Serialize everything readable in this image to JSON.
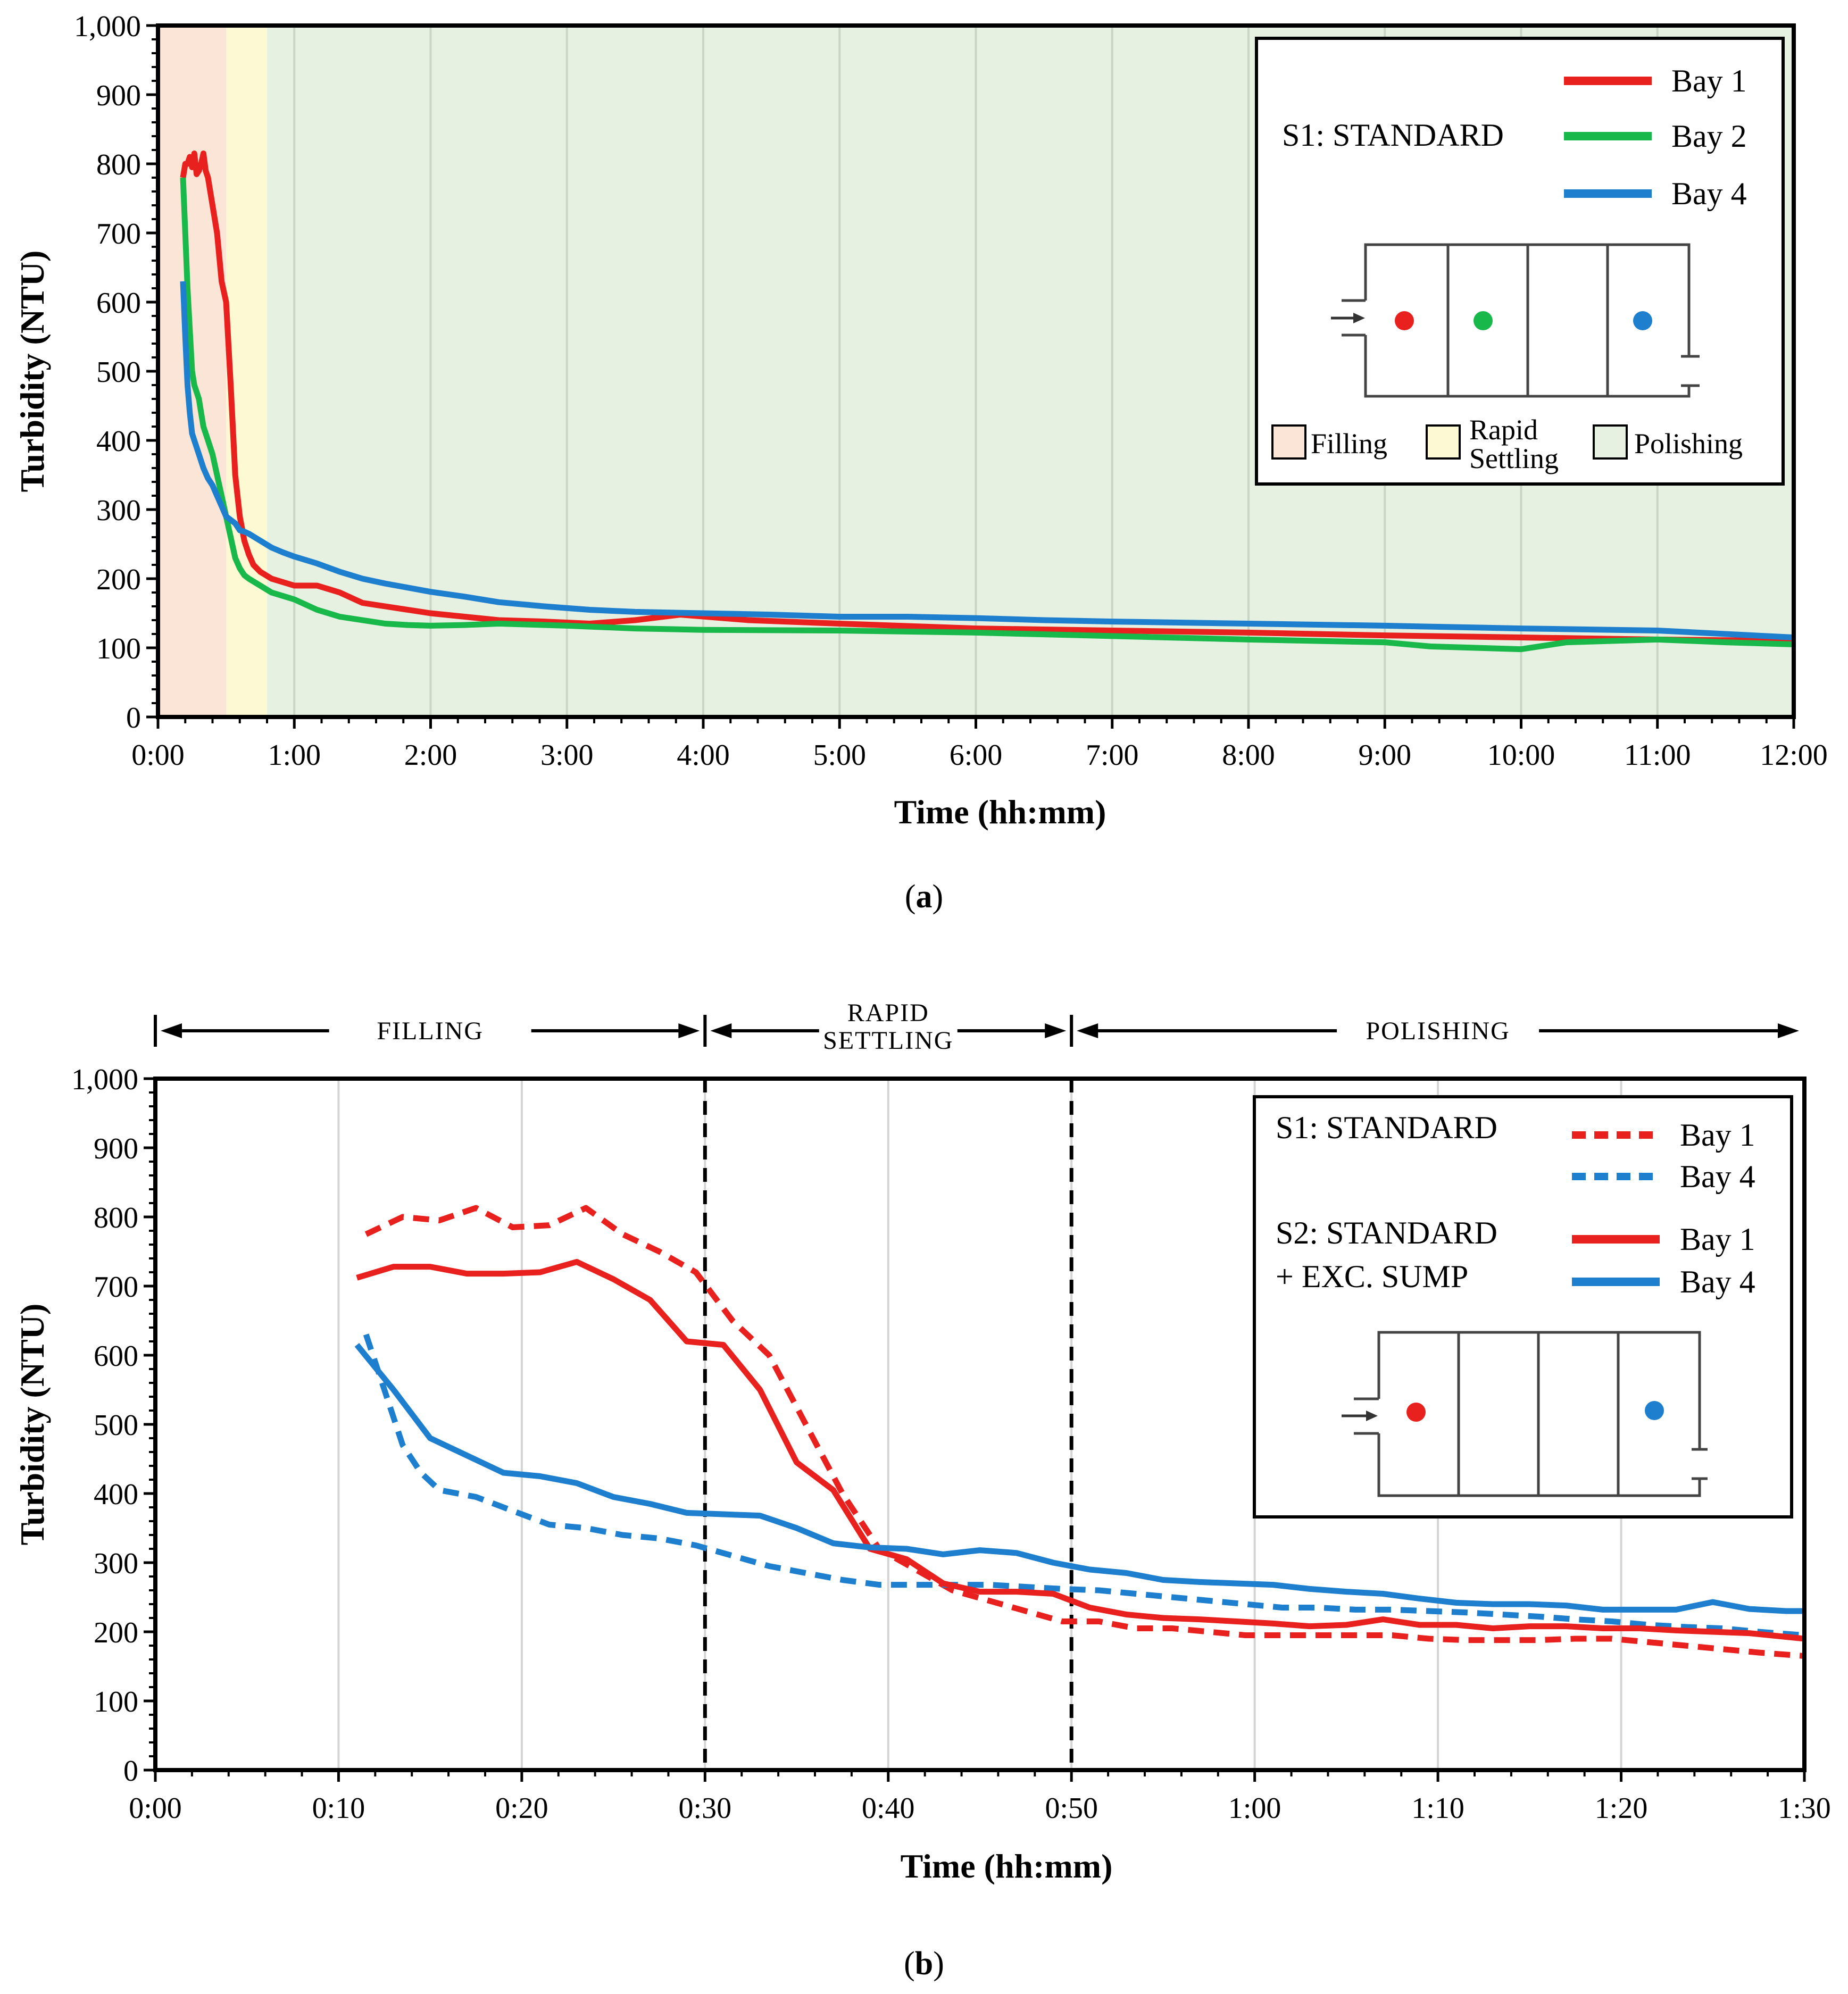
{
  "colors": {
    "red": "#e8201e",
    "green": "#19b84a",
    "blue": "#1e7fcf",
    "filling_bg": "#fbe5d6",
    "settling_bg": "#fdf9d2",
    "polishing_bg": "#e7f1e1",
    "grid": "#cfd8cf"
  },
  "chart_data": [
    {
      "type": "line",
      "panel_label": "(a)",
      "panel_letter": "a",
      "xlabel": "Time (hh:mm)",
      "ylabel": "Turbidity  (NTU)",
      "xlim": [
        0,
        720
      ],
      "ylim": [
        0,
        1000
      ],
      "x_ticks": [
        0,
        60,
        120,
        180,
        240,
        300,
        360,
        420,
        480,
        540,
        600,
        660,
        720
      ],
      "x_tick_labels": [
        "0:00",
        "1:00",
        "2:00",
        "3:00",
        "4:00",
        "5:00",
        "6:00",
        "7:00",
        "8:00",
        "9:00",
        "10:00",
        "11:00",
        "12:00"
      ],
      "y_ticks": [
        0,
        100,
        200,
        300,
        400,
        500,
        600,
        700,
        800,
        900,
        1000
      ],
      "y_tick_labels": [
        "0",
        "100",
        "200",
        "300",
        "400",
        "500",
        "600",
        "700",
        "800",
        "900",
        "1,000"
      ],
      "phases": [
        {
          "name": "Filling",
          "start": 0,
          "end": 30,
          "color": "#fbe5d6"
        },
        {
          "name": "Rapid Settling",
          "start": 30,
          "end": 48,
          "color": "#fdf9d2"
        },
        {
          "name": "Polishing",
          "start": 48,
          "end": 720,
          "color": "#e7f1e1"
        }
      ],
      "legend_title": "S1: STANDARD",
      "phase_legend": [
        "Filling",
        "Rapid",
        "Settling",
        "Polishing"
      ],
      "series": [
        {
          "name": "Bay 1",
          "color": "#e8201e",
          "style": "solid",
          "x": [
            11,
            12,
            13,
            14,
            15,
            16,
            17,
            18,
            19,
            20,
            21,
            22,
            24,
            26,
            28,
            30,
            32,
            34,
            36,
            38,
            40,
            42,
            45,
            50,
            55,
            60,
            70,
            80,
            90,
            100,
            110,
            120,
            135,
            150,
            170,
            190,
            210,
            230,
            260,
            300,
            360,
            420,
            480,
            540,
            600,
            660,
            720
          ],
          "y": [
            780,
            800,
            800,
            810,
            795,
            815,
            785,
            790,
            800,
            815,
            790,
            780,
            740,
            700,
            630,
            600,
            480,
            350,
            290,
            255,
            235,
            220,
            210,
            200,
            195,
            190,
            190,
            180,
            165,
            160,
            155,
            150,
            145,
            140,
            138,
            135,
            140,
            148,
            140,
            135,
            128,
            125,
            122,
            118,
            115,
            112,
            110
          ]
        },
        {
          "name": "Bay 2",
          "color": "#19b84a",
          "style": "solid",
          "x": [
            11,
            12,
            13,
            14,
            15,
            16,
            17,
            18,
            19,
            20,
            21,
            22,
            24,
            26,
            28,
            30,
            32,
            34,
            36,
            38,
            40,
            45,
            50,
            55,
            60,
            70,
            80,
            90,
            100,
            110,
            120,
            135,
            150,
            180,
            210,
            240,
            300,
            360,
            420,
            480,
            540,
            560,
            580,
            600,
            620,
            640,
            660,
            690,
            720
          ],
          "y": [
            780,
            700,
            620,
            560,
            500,
            480,
            470,
            460,
            440,
            420,
            410,
            400,
            380,
            350,
            320,
            290,
            260,
            230,
            215,
            205,
            200,
            190,
            180,
            175,
            170,
            155,
            145,
            140,
            135,
            133,
            132,
            133,
            135,
            132,
            128,
            126,
            125,
            122,
            117,
            112,
            108,
            102,
            100,
            98,
            108,
            110,
            112,
            108,
            105
          ]
        },
        {
          "name": "Bay 4",
          "color": "#1e7fcf",
          "style": "solid",
          "x": [
            11,
            12,
            13,
            14,
            15,
            16,
            17,
            18,
            20,
            22,
            24,
            26,
            28,
            30,
            32,
            34,
            36,
            38,
            40,
            45,
            50,
            55,
            60,
            70,
            80,
            90,
            100,
            110,
            120,
            135,
            150,
            170,
            190,
            210,
            240,
            270,
            300,
            330,
            360,
            390,
            420,
            480,
            540,
            600,
            660,
            690,
            720
          ],
          "y": [
            630,
            550,
            480,
            440,
            410,
            400,
            390,
            380,
            360,
            345,
            335,
            320,
            305,
            290,
            285,
            280,
            270,
            268,
            265,
            255,
            245,
            238,
            232,
            222,
            210,
            200,
            193,
            187,
            181,
            174,
            166,
            160,
            155,
            152,
            150,
            148,
            145,
            145,
            143,
            140,
            138,
            135,
            132,
            128,
            125,
            120,
            115
          ]
        }
      ]
    },
    {
      "type": "line",
      "panel_label": "(b)",
      "panel_letter": "b",
      "xlabel": "Time (hh:mm)",
      "ylabel": "Turbidity  (NTU)",
      "xlim": [
        0,
        90
      ],
      "ylim": [
        0,
        1000
      ],
      "x_ticks": [
        0,
        10,
        20,
        30,
        40,
        50,
        60,
        70,
        80,
        90
      ],
      "x_tick_labels": [
        "0:00",
        "0:10",
        "0:20",
        "0:30",
        "0:40",
        "0:50",
        "1:00",
        "1:10",
        "1:20",
        "1:30"
      ],
      "y_ticks": [
        0,
        100,
        200,
        300,
        400,
        500,
        600,
        700,
        800,
        900,
        1000
      ],
      "y_tick_labels": [
        "0",
        "100",
        "200",
        "300",
        "400",
        "500",
        "600",
        "700",
        "800",
        "900",
        "1,000"
      ],
      "phase_markers": [
        30,
        50
      ],
      "phase_annotations": [
        {
          "start": 0,
          "end": 30,
          "label": [
            "FILLING"
          ]
        },
        {
          "start": 30,
          "end": 50,
          "label": [
            "RAPID",
            "SETTLING"
          ]
        },
        {
          "start": 50,
          "end": 90,
          "label": [
            "POLISHING"
          ]
        }
      ],
      "legend_groups": [
        {
          "title": [
            "S1: STANDARD"
          ],
          "entries": [
            "Bay 1",
            "Bay 4"
          ],
          "style": "dashed"
        },
        {
          "title": [
            "S2: STANDARD",
            "+ EXC. SUMP"
          ],
          "entries": [
            "Bay 1",
            "Bay 4"
          ],
          "style": "solid"
        }
      ],
      "series": [
        {
          "name": "S1 Bay 1",
          "color": "#e8201e",
          "style": "dashed",
          "x": [
            11.5,
            13.5,
            15.5,
            17.5,
            19.5,
            21.5,
            23.5,
            25.5,
            27.5,
            29.5,
            31.5,
            33.5,
            35.5,
            37.5,
            39.5,
            41.5,
            43.5,
            45.5,
            47.5,
            49.5,
            51.5,
            53.5,
            55.5,
            57.5,
            59.5,
            61.5,
            63.5,
            65.5,
            67.5,
            69.5,
            71.5,
            73.5,
            75.5,
            77.5,
            79.5,
            81.5,
            83.5,
            85.5,
            87.5,
            90
          ],
          "y": [
            775,
            800,
            795,
            813,
            785,
            788,
            813,
            775,
            750,
            720,
            650,
            600,
            500,
            400,
            320,
            290,
            260,
            245,
            230,
            215,
            215,
            205,
            205,
            200,
            195,
            195,
            195,
            195,
            195,
            190,
            188,
            188,
            188,
            190,
            190,
            185,
            180,
            175,
            170,
            165
          ]
        },
        {
          "name": "S1 Bay 4",
          "color": "#1e7fcf",
          "style": "dashed",
          "x": [
            11.5,
            12.5,
            13.5,
            14.5,
            15.5,
            17.5,
            19.5,
            21.5,
            23.5,
            25.5,
            27.5,
            29.5,
            31.5,
            33.5,
            35.5,
            37.5,
            39.5,
            41.5,
            43.5,
            45.5,
            47.5,
            49.5,
            51.5,
            53.5,
            55.5,
            57.5,
            59.5,
            61.5,
            63.5,
            65.5,
            67.5,
            69.5,
            71.5,
            73.5,
            75.5,
            77.5,
            79.5,
            81.5,
            83.5,
            85.5,
            87.5,
            90
          ],
          "y": [
            630,
            550,
            470,
            430,
            405,
            395,
            375,
            355,
            350,
            340,
            335,
            325,
            310,
            295,
            285,
            275,
            268,
            268,
            268,
            268,
            265,
            262,
            260,
            255,
            250,
            245,
            240,
            235,
            235,
            232,
            232,
            230,
            228,
            225,
            222,
            218,
            215,
            210,
            207,
            205,
            200,
            195
          ]
        },
        {
          "name": "S2 Bay 1",
          "color": "#e8201e",
          "style": "solid",
          "x": [
            11,
            13,
            15,
            17,
            19,
            21,
            23,
            25,
            27,
            29,
            31,
            33,
            35,
            37,
            39,
            41,
            43,
            45,
            47,
            49,
            51,
            53,
            55,
            57,
            59,
            61,
            63,
            65,
            67,
            69,
            71,
            73,
            75,
            77,
            79,
            81,
            83,
            85,
            87,
            90
          ],
          "y": [
            712,
            728,
            728,
            718,
            718,
            720,
            735,
            710,
            680,
            620,
            615,
            550,
            445,
            405,
            320,
            305,
            270,
            258,
            258,
            255,
            235,
            225,
            220,
            218,
            215,
            212,
            208,
            210,
            218,
            210,
            210,
            205,
            208,
            208,
            205,
            205,
            202,
            200,
            198,
            190
          ]
        },
        {
          "name": "S2 Bay 4",
          "color": "#1e7fcf",
          "style": "solid",
          "x": [
            11,
            13,
            15,
            17,
            19,
            21,
            23,
            25,
            27,
            29,
            31,
            33,
            35,
            37,
            39,
            41,
            43,
            45,
            47,
            49,
            51,
            53,
            55,
            57,
            59,
            61,
            63,
            65,
            67,
            69,
            71,
            73,
            75,
            77,
            79,
            81,
            83,
            85,
            87,
            89,
            90
          ],
          "y": [
            615,
            550,
            480,
            455,
            430,
            425,
            415,
            395,
            385,
            372,
            370,
            368,
            350,
            328,
            322,
            320,
            312,
            318,
            314,
            300,
            290,
            285,
            275,
            272,
            270,
            268,
            262,
            258,
            255,
            248,
            242,
            240,
            240,
            238,
            232,
            232,
            232,
            243,
            233,
            230,
            230
          ]
        }
      ]
    }
  ]
}
